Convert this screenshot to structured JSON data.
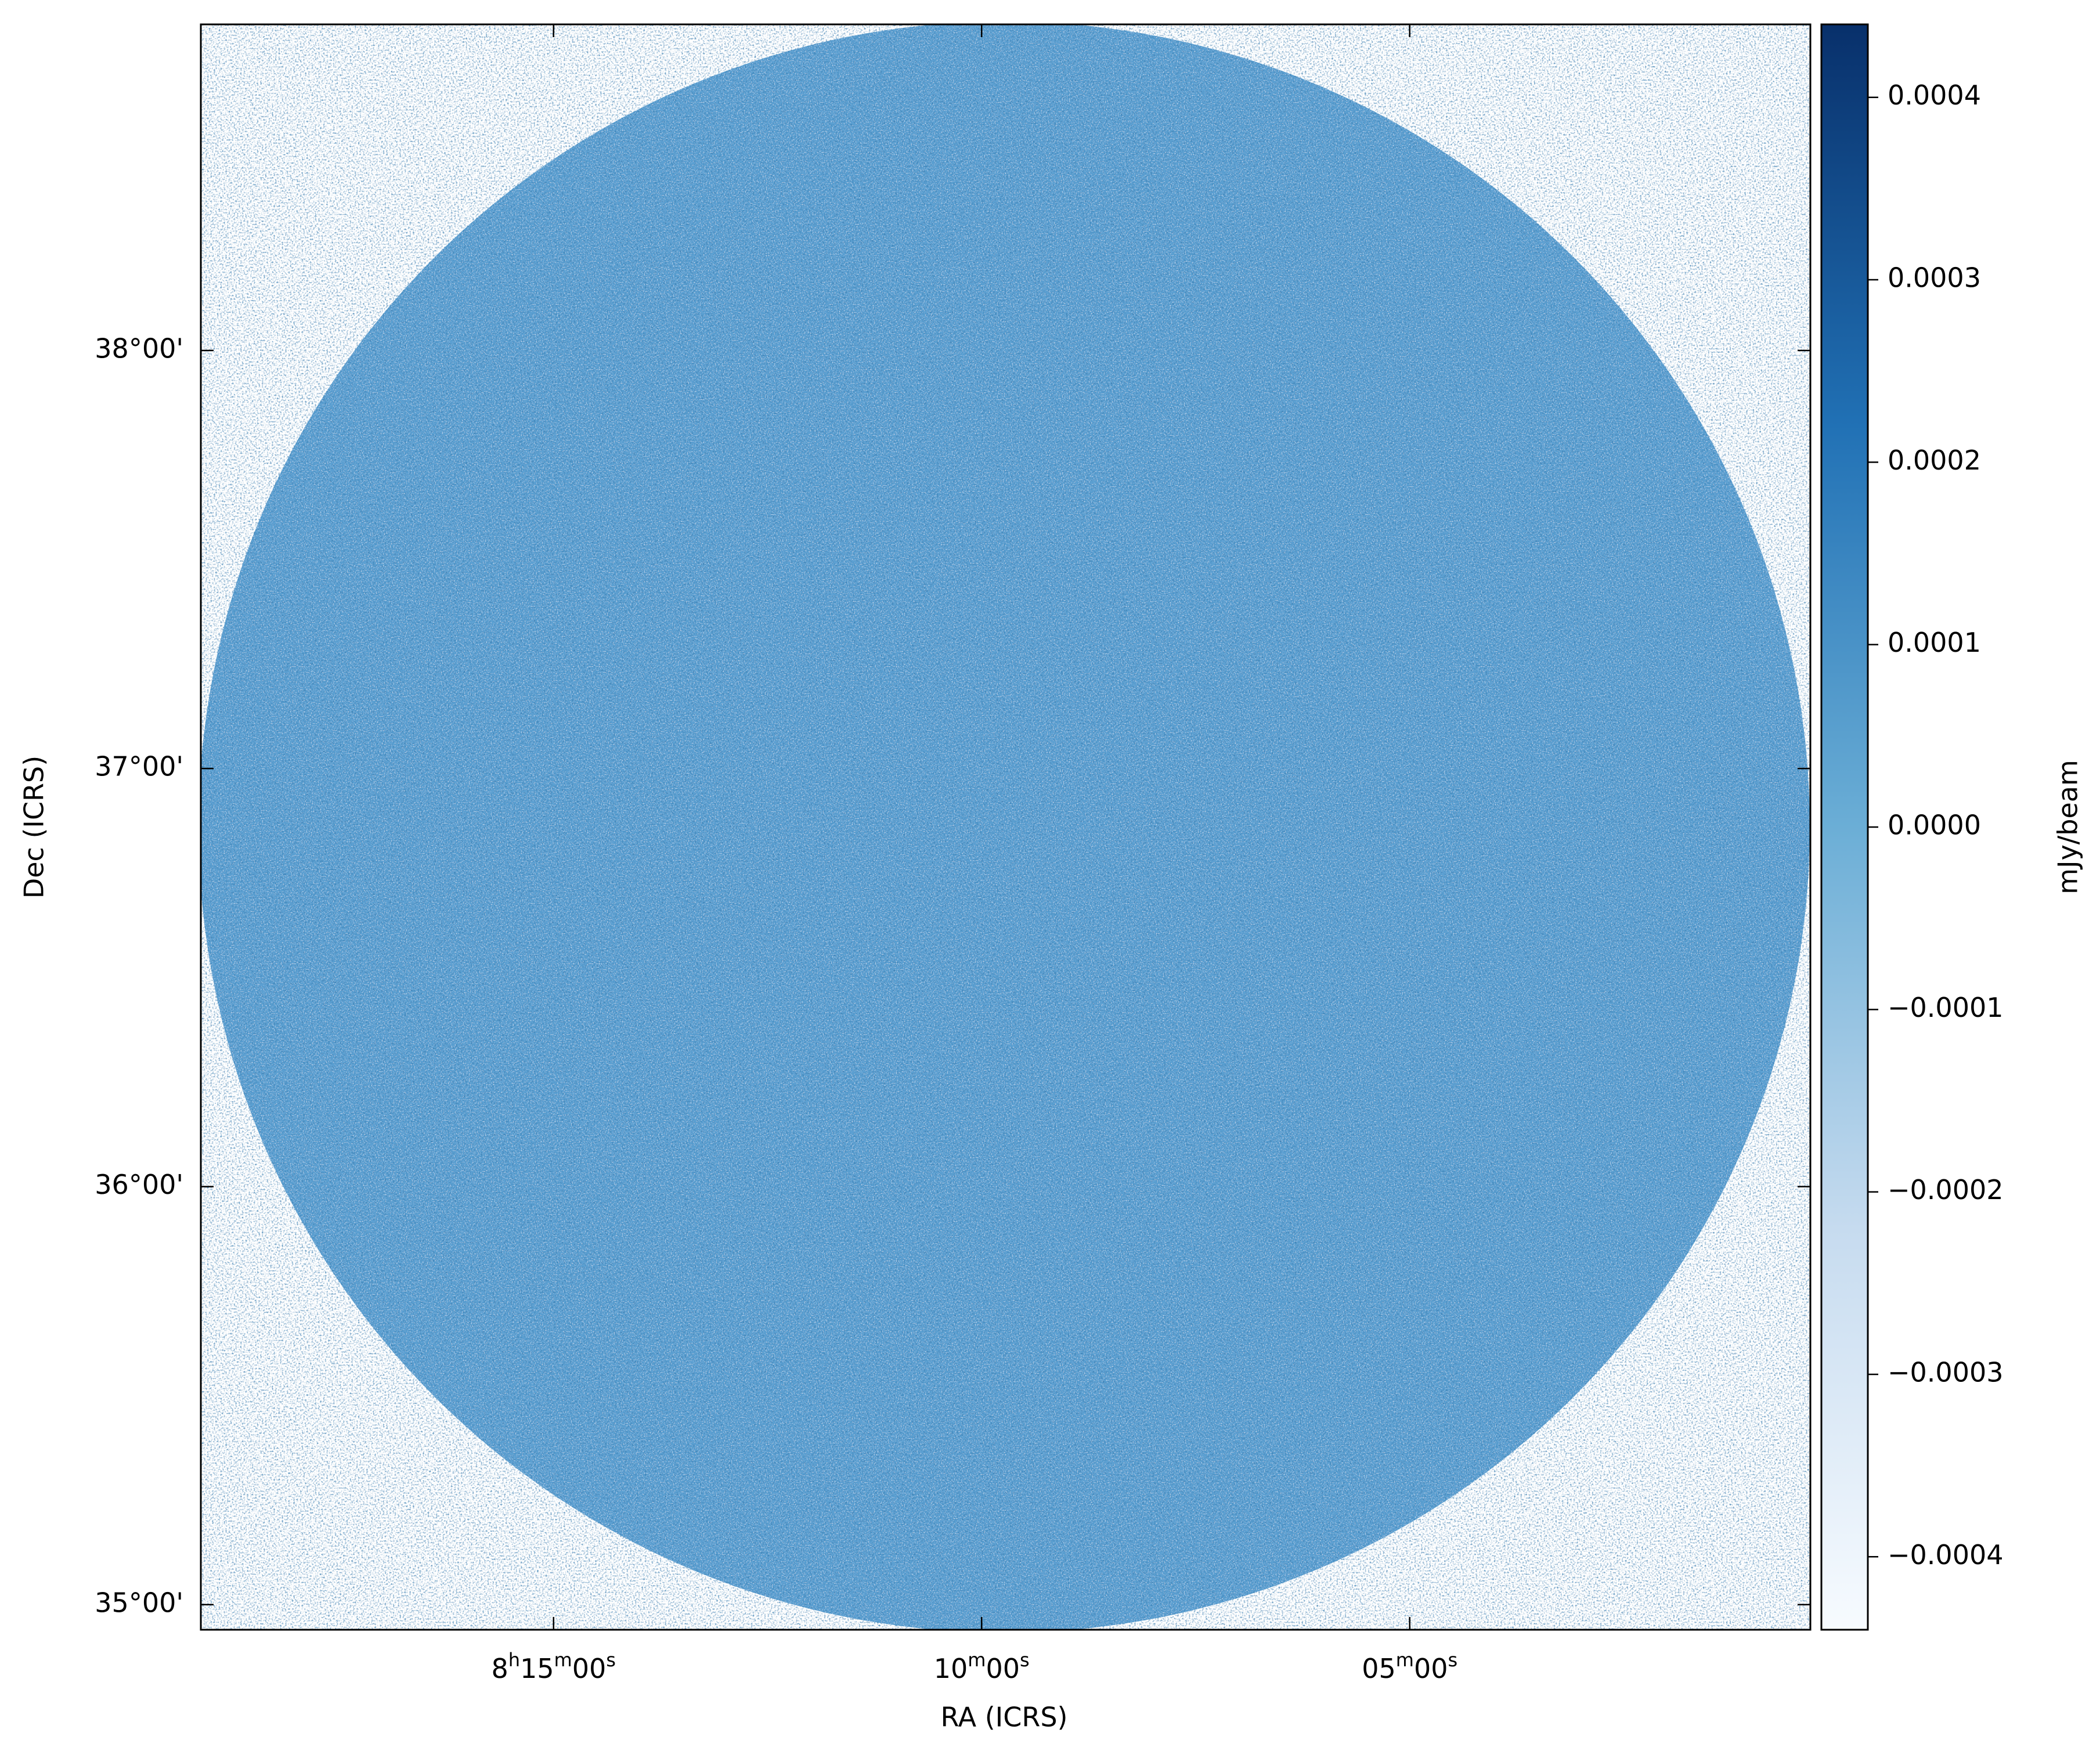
{
  "chart_data": {
    "type": "image",
    "xlabel": "RA (ICRS)",
    "ylabel": "Dec (ICRS)",
    "xlim": [
      124.78,
      120.08
    ],
    "ylim": [
      34.94,
      38.78
    ],
    "xticks": [
      {
        "value": 123.75,
        "label": "8h15m00s"
      },
      {
        "value": 122.5,
        "label": "10m00s"
      },
      {
        "value": 121.25,
        "label": "05m00s"
      }
    ],
    "yticks": [
      {
        "value": 38,
        "label": "38°00'"
      },
      {
        "value": 37,
        "label": "37°00'"
      },
      {
        "value": 36,
        "label": "36°00'"
      },
      {
        "value": 35,
        "label": "35°00'"
      }
    ],
    "colorbar": {
      "label": "mJy/beam",
      "colors": [
        "#f7fbff",
        "#c6dbef",
        "#6baed6",
        "#2171b5",
        "#08306b"
      ],
      "lim": [
        -0.00044,
        0.00044
      ],
      "ticks": [
        0.0004,
        0.0003,
        0.0002,
        0.0001,
        {
          "value": 0,
          "label": "0.0000"
        },
        {
          "value": -0.0001,
          "label": "−0.0001"
        },
        {
          "value": -0.0002,
          "label": "−0.0002"
        },
        {
          "value": -0.0003,
          "label": "−0.0003"
        },
        {
          "value": -0.0004,
          "label": "−0.0004"
        }
      ]
    }
  }
}
